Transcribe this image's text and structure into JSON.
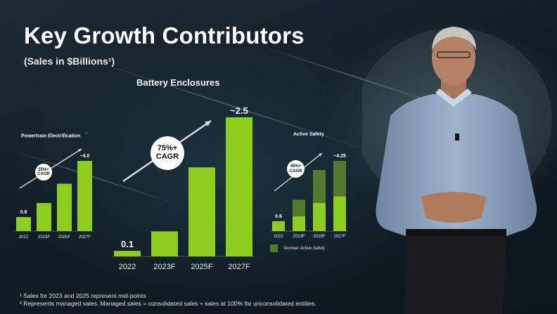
{
  "slide": {
    "title": "Key Growth Contributors",
    "subtitle": "(Sales in $Billions¹)",
    "footnotes": [
      "¹ Sales for 2023 and 2025 represent mid-points",
      "² Represents managed sales.  Managed sales = consolidated sales + sales at 100% for unconsolidated entities."
    ],
    "colors": {
      "bar_green": "#8ccd1f",
      "bar_dark_green": "#527a2e",
      "background": "#0f1c24"
    }
  },
  "chart_data": [
    {
      "type": "bar",
      "title": "Powertrain Electrification",
      "title_mark": "²",
      "categories": [
        "2022",
        "2023F",
        "2025F",
        "2027F"
      ],
      "series": [
        {
          "values": [
            0.8,
            1.6,
            2.7,
            4.0
          ]
        }
      ],
      "data_labels": [
        "0.8",
        "",
        "",
        "~4.0"
      ],
      "annotation": {
        "line1": "35%+",
        "line2": "CAGR"
      }
    },
    {
      "type": "bar",
      "title": "Battery Enclosures",
      "categories": [
        "2022",
        "2023F",
        "2025F",
        "2027F"
      ],
      "series": [
        {
          "values": [
            0.1,
            0.45,
            1.6,
            2.5
          ]
        }
      ],
      "data_labels": [
        "0.1",
        "",
        "",
        "~2.5"
      ],
      "annotation": {
        "line1": "75%+",
        "line2": "CAGR"
      }
    },
    {
      "type": "bar",
      "title": "Active Safety",
      "categories": [
        "2022",
        "2023F",
        "2025F",
        "2027F"
      ],
      "series": [
        {
          "values": [
            0.6,
            0.9,
            1.7,
            2.1
          ]
        },
        {
          "name": "Veoneer Active Safety",
          "values": [
            0,
            1.0,
            2.0,
            2.15
          ]
        }
      ],
      "data_labels": [
        "0.6",
        "",
        "",
        "~4.25"
      ],
      "annotation": {
        "line1": "45%+",
        "line2": "CAGR"
      }
    }
  ]
}
